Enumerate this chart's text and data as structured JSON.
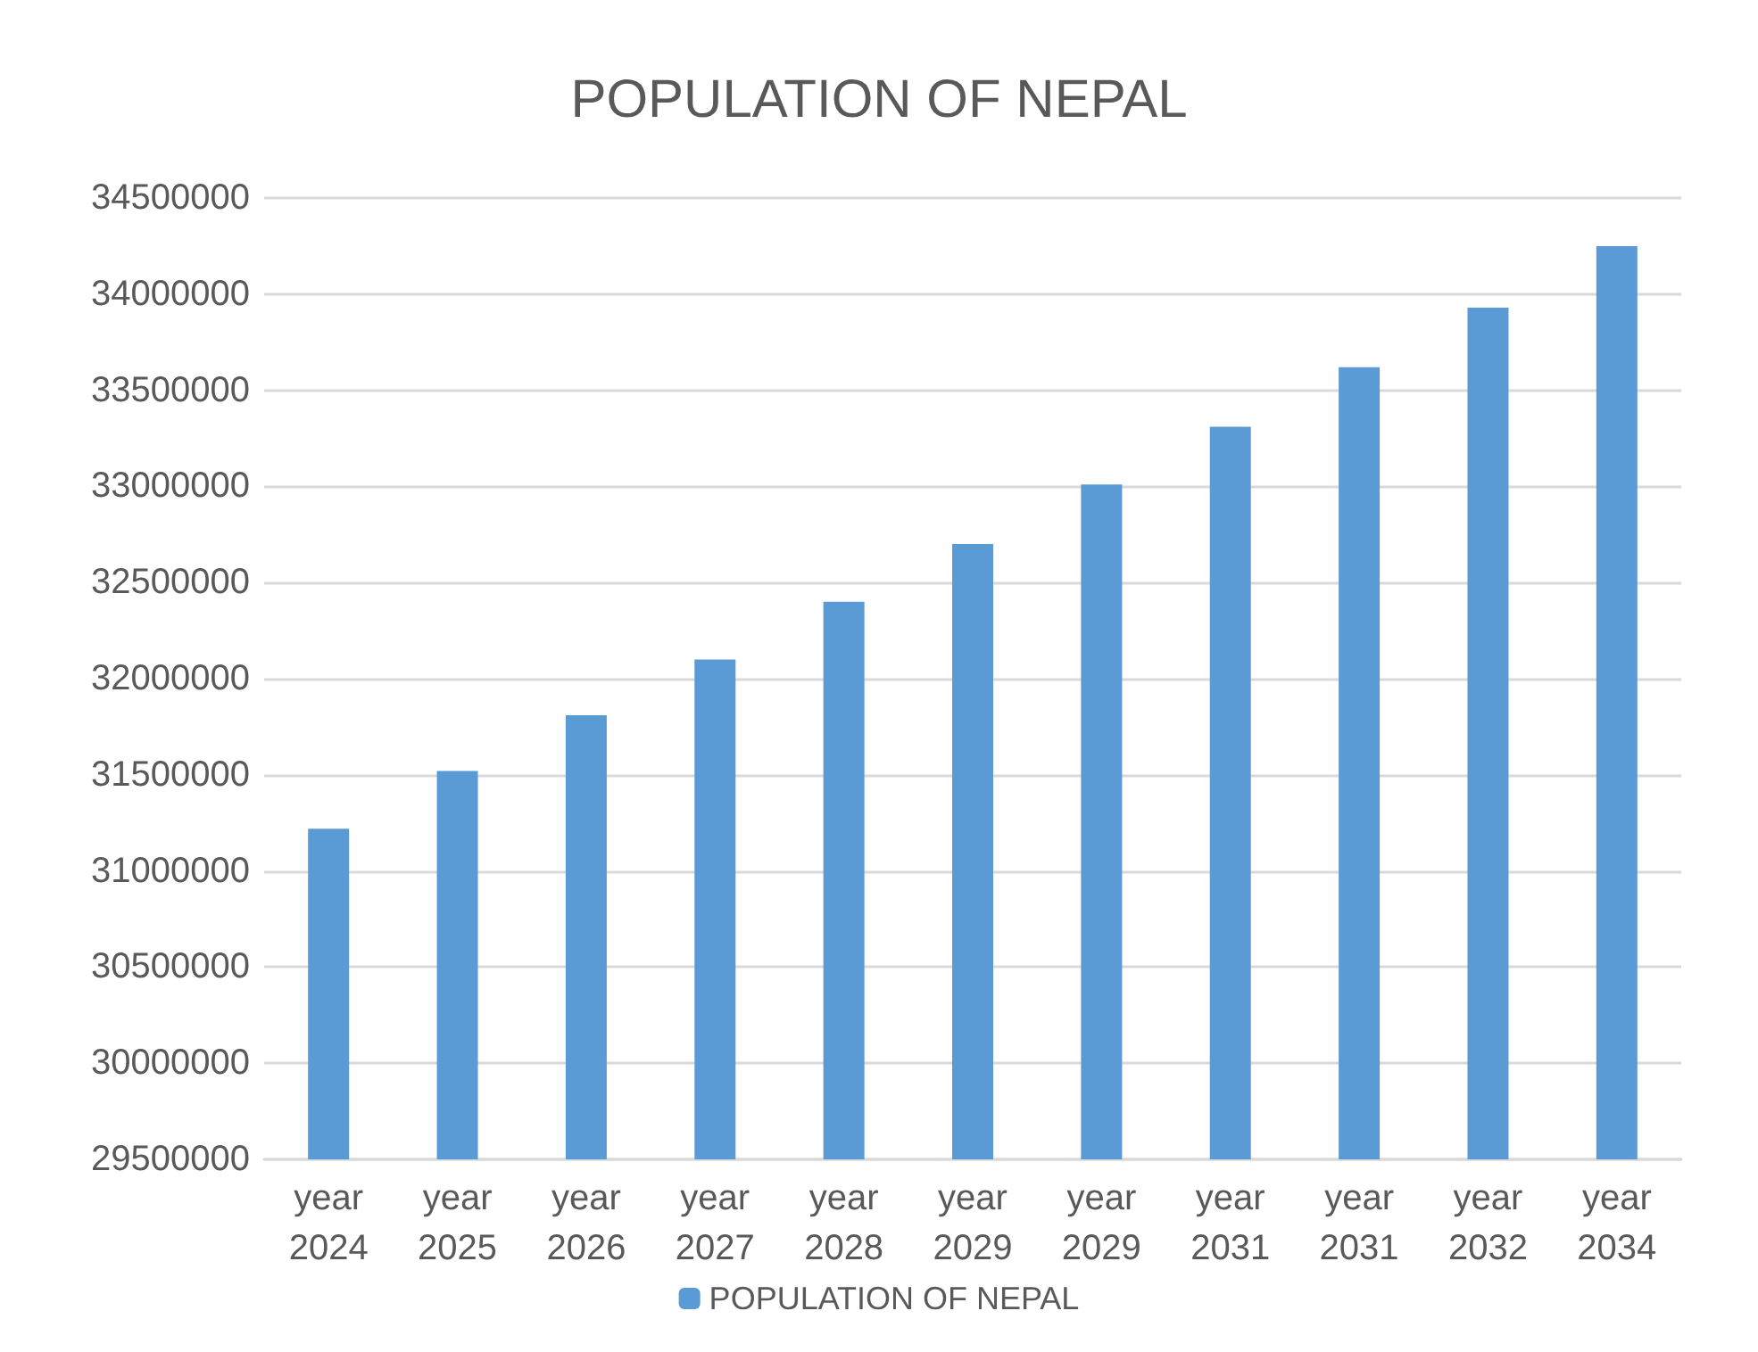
{
  "chart_data": {
    "type": "bar",
    "title": "POPULATION OF NEPAL",
    "categories": [
      "year 2024",
      "year 2025",
      "year 2026",
      "year 2027",
      "year 2028",
      "year 2029",
      "year 2029",
      "year 2031",
      "year 2031",
      "year 2032",
      "year 2034"
    ],
    "series": [
      {
        "name": "POPULATION OF NEPAL",
        "color": "#5b9bd5",
        "values": [
          31220000,
          31520000,
          31810000,
          32100000,
          32400000,
          32700000,
          33010000,
          33310000,
          33620000,
          33930000,
          34250000
        ]
      }
    ],
    "ylim": [
      29500000,
      34500000
    ],
    "yticks": [
      29500000,
      30000000,
      30500000,
      31000000,
      31500000,
      32000000,
      32500000,
      33000000,
      33500000,
      34000000,
      34500000
    ],
    "grid": "y",
    "legend": "bottom"
  }
}
